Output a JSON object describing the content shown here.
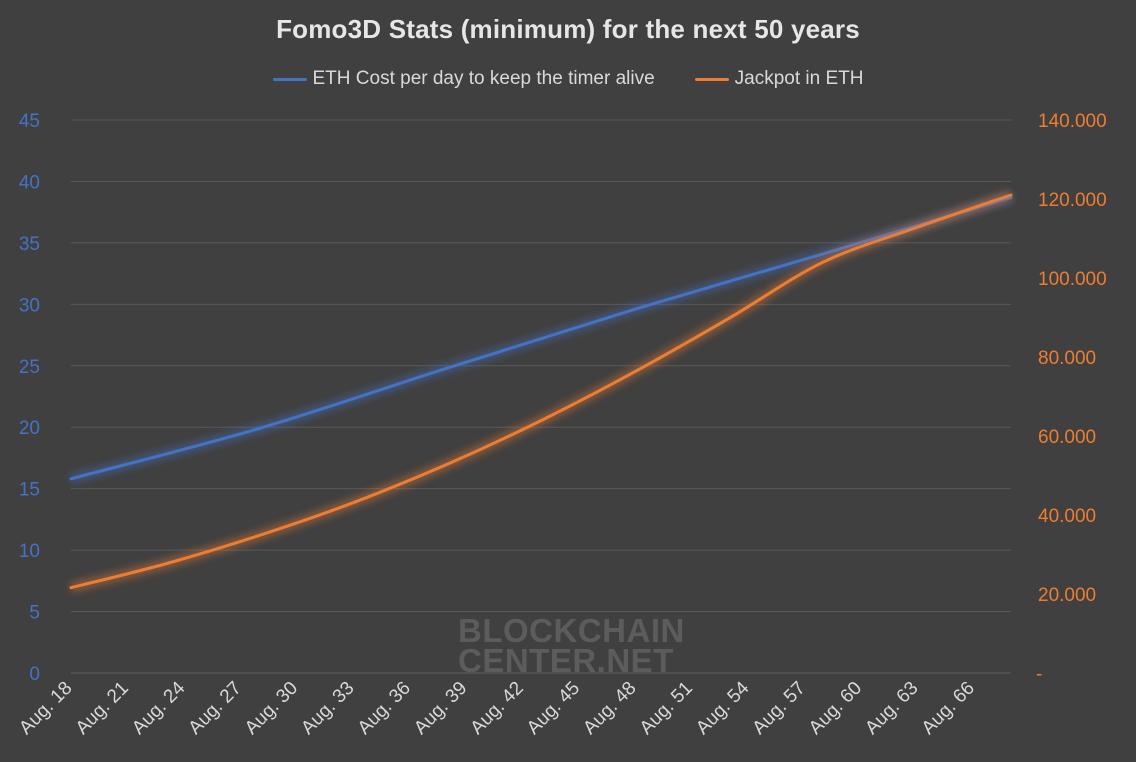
{
  "chart_data": {
    "type": "line",
    "title": "Fomo3D Stats (minimum) for the next 50 years",
    "x_tick_labels": [
      "Aug. 18",
      "Aug. 21",
      "Aug. 24",
      "Aug. 27",
      "Aug. 30",
      "Aug. 33",
      "Aug. 36",
      "Aug. 39",
      "Aug. 42",
      "Aug. 45",
      "Aug. 48",
      "Aug. 51",
      "Aug. 54",
      "Aug. 57",
      "Aug. 60",
      "Aug. 63",
      "Aug. 66"
    ],
    "x_range": [
      2018,
      2068
    ],
    "legend_position": "top-center",
    "grid": true,
    "left_axis": {
      "ylim": [
        0,
        45
      ],
      "ticks": [
        0,
        5,
        10,
        15,
        20,
        25,
        30,
        35,
        40,
        45
      ],
      "tick_labels": [
        "0",
        "5",
        "10",
        "15",
        "20",
        "25",
        "30",
        "35",
        "40",
        "45"
      ],
      "color": "#4472c4"
    },
    "right_axis": {
      "ylim": [
        0,
        140000
      ],
      "ticks": [
        0,
        20000,
        40000,
        60000,
        80000,
        100000,
        120000,
        140000
      ],
      "tick_labels": [
        "-",
        "20.000",
        "40.000",
        "60.000",
        "80.000",
        "100.000",
        "120.000",
        "140.000"
      ],
      "color": "#ed7d31"
    },
    "series": [
      {
        "name": "ETH Cost per day to keep the timer alive",
        "axis": "left",
        "color": "#4472c4",
        "x": [
          2018,
          2028,
          2038,
          2048,
          2058,
          2068
        ],
        "y": [
          15.8,
          19.9,
          24.8,
          29.6,
          34.1,
          38.7
        ]
      },
      {
        "name": "Jackpot in ETH",
        "axis": "right",
        "color": "#ed7d31",
        "x": [
          2018,
          2023,
          2028,
          2033,
          2038,
          2043,
          2048,
          2053,
          2058,
          2063,
          2068
        ],
        "y": [
          21600,
          27600,
          34800,
          43100,
          52800,
          63900,
          76300,
          89800,
          104000,
          112800,
          121000
        ]
      }
    ],
    "watermark": [
      "BLOCKCHAIN",
      "CENTER.NET"
    ]
  }
}
